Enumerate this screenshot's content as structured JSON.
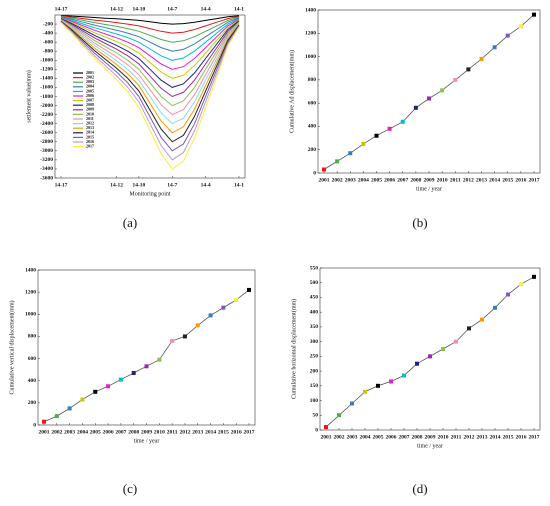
{
  "chart_data": [
    {
      "type": "line",
      "label": "(a)",
      "xlabel": "Monitoring  point",
      "ylabel": "settlement value(mm)",
      "categories": [
        "14-17",
        null,
        null,
        null,
        null,
        "14-12",
        null,
        "14-10",
        null,
        null,
        "14-7",
        null,
        null,
        "14-4",
        null,
        null,
        "14-1"
      ],
      "ylim": [
        -3600,
        0
      ],
      "yticks": [
        -200,
        -400,
        -600,
        -800,
        -1000,
        -1200,
        -1400,
        -1600,
        -1800,
        -2000,
        -2200,
        -2400,
        -2600,
        -2800,
        -3000,
        -3200,
        -3400,
        -3600
      ],
      "legend": "left",
      "top_axis": true,
      "series": [
        {
          "name": "2001",
          "color": "#000000",
          "values": [
            -10,
            -24,
            -40,
            -56,
            -70,
            -84,
            -100,
            -120,
            -150,
            -180,
            -200,
            -190,
            -160,
            -120,
            -80,
            -40,
            -16
          ]
        },
        {
          "name": "2002",
          "color": "#e41a1c",
          "values": [
            -20,
            -48,
            -80,
            -112,
            -140,
            -168,
            -200,
            -240,
            -300,
            -360,
            -400,
            -380,
            -320,
            -240,
            -160,
            -80,
            -32
          ]
        },
        {
          "name": "2003",
          "color": "#4daf4a",
          "values": [
            -30,
            -72,
            -120,
            -168,
            -210,
            -252,
            -300,
            -360,
            -450,
            -540,
            -600,
            -570,
            -480,
            -360,
            -240,
            -120,
            -48
          ]
        },
        {
          "name": "2004",
          "color": "#377eb8",
          "values": [
            -40,
            -96,
            -160,
            -224,
            -280,
            -336,
            -400,
            -480,
            -600,
            -720,
            -800,
            -760,
            -640,
            -480,
            -320,
            -160,
            -64
          ]
        },
        {
          "name": "2005",
          "color": "#00bcd4",
          "values": [
            -50,
            -120,
            -200,
            -280,
            -350,
            -420,
            -500,
            -600,
            -750,
            -900,
            -1000,
            -950,
            -800,
            -600,
            -400,
            -200,
            -80
          ]
        },
        {
          "name": "2006",
          "color": "#e91ec8",
          "values": [
            -60,
            -144,
            -240,
            -336,
            -420,
            -504,
            -600,
            -720,
            -900,
            -1080,
            -1200,
            -1140,
            -960,
            -720,
            -480,
            -240,
            -96
          ]
        },
        {
          "name": "2007",
          "color": "#c8c800",
          "values": [
            -70,
            -168,
            -280,
            -392,
            -490,
            -588,
            -700,
            -840,
            -1050,
            -1260,
            -1400,
            -1330,
            -1120,
            -840,
            -560,
            -280,
            -112
          ]
        },
        {
          "name": "2008",
          "color": "#1a237e",
          "values": [
            -80,
            -192,
            -320,
            -448,
            -560,
            -672,
            -800,
            -960,
            -1200,
            -1440,
            -1600,
            -1520,
            -1280,
            -960,
            -640,
            -320,
            -128
          ]
        },
        {
          "name": "2009",
          "color": "#9c27b0",
          "values": [
            -90,
            -216,
            -360,
            -504,
            -630,
            -756,
            -900,
            -1080,
            -1350,
            -1620,
            -1800,
            -1710,
            -1440,
            -1080,
            -720,
            -360,
            -144
          ]
        },
        {
          "name": "2010",
          "color": "#8bc34a",
          "values": [
            -100,
            -240,
            -400,
            -560,
            -700,
            -840,
            -1000,
            -1200,
            -1500,
            -1800,
            -2000,
            -1900,
            -1600,
            -1200,
            -800,
            -400,
            -160
          ]
        },
        {
          "name": "2011",
          "color": "#f48fb1",
          "values": [
            -110,
            -264,
            -440,
            -616,
            -770,
            -924,
            -1100,
            -1320,
            -1650,
            -1980,
            -2200,
            -2090,
            -1760,
            -1320,
            -880,
            -440,
            -176
          ]
        },
        {
          "name": "2012",
          "color": "#80deea",
          "values": [
            -120,
            -288,
            -480,
            -672,
            -840,
            -1008,
            -1200,
            -1440,
            -1800,
            -2160,
            -2400,
            -2280,
            -1920,
            -1440,
            -960,
            -480,
            -192
          ]
        },
        {
          "name": "2013",
          "color": "#ff9800",
          "values": [
            -130,
            -312,
            -520,
            -728,
            -910,
            -1092,
            -1300,
            -1560,
            -1950,
            -2340,
            -2600,
            -2470,
            -2080,
            -1560,
            -1040,
            -520,
            -208
          ]
        },
        {
          "name": "2014",
          "color": "#212121",
          "values": [
            -140,
            -336,
            -560,
            -784,
            -980,
            -1176,
            -1400,
            -1680,
            -2100,
            -2520,
            -2800,
            -2660,
            -2240,
            -1680,
            -1120,
            -560,
            -224
          ]
        },
        {
          "name": "2015",
          "color": "#7e57c2",
          "values": [
            -150,
            -360,
            -600,
            -840,
            -1050,
            -1260,
            -1500,
            -1800,
            -2250,
            -2700,
            -3000,
            -2850,
            -2400,
            -1800,
            -1200,
            -600,
            -240
          ]
        },
        {
          "name": "2016",
          "color": "#b39ddb",
          "values": [
            -160,
            -384,
            -640,
            -896,
            -1120,
            -1344,
            -1600,
            -1920,
            -2400,
            -2880,
            -3200,
            -3040,
            -2560,
            -1920,
            -1280,
            -640,
            -256
          ]
        },
        {
          "name": "2017",
          "color": "#ffeb3b",
          "values": [
            -170,
            -408,
            -680,
            -952,
            -1190,
            -1428,
            -1700,
            -2040,
            -2550,
            -3060,
            -3400,
            -3230,
            -2720,
            -2040,
            -1360,
            -680,
            -272
          ]
        }
      ]
    },
    {
      "type": "line",
      "label": "(b)",
      "xlabel": "time / year",
      "ylabel": "Cumulative Ad displacement(mm)",
      "categories": [
        "2001",
        "2002",
        "2003",
        "2004",
        "2005",
        "2006",
        "2007",
        "2008",
        "2009",
        "2010",
        "2011",
        "2012",
        "2013",
        "2014",
        "2015",
        "2016",
        "2017"
      ],
      "ylim": [
        0,
        1400
      ],
      "yticks": [
        0,
        200,
        400,
        600,
        800,
        1000,
        1200,
        1400
      ],
      "marker_colors": [
        "#e41a1c",
        "#4daf4a",
        "#377eb8",
        "#c8c800",
        "#000000",
        "#e91ec8",
        "#00bcd4",
        "#1a237e",
        "#9c27b0",
        "#8bc34a",
        "#f48fb1",
        "#212121",
        "#ff9800",
        "#377eb8",
        "#7e57c2",
        "#ffeb3b",
        "#000000"
      ],
      "series": [
        {
          "name": null,
          "color": "#555555",
          "values": [
            30,
            100,
            170,
            250,
            320,
            380,
            440,
            560,
            640,
            710,
            800,
            890,
            980,
            1080,
            1180,
            1260,
            1360
          ]
        }
      ]
    },
    {
      "type": "line",
      "label": "(c)",
      "xlabel": "time / year",
      "ylabel": "Cumulative vertical displacement(mm)",
      "categories": [
        "2001",
        "2002",
        "2003",
        "2004",
        "2005",
        "2006",
        "2007",
        "2008",
        "2009",
        "2010",
        "2011",
        "2012",
        "2013",
        "2014",
        "2015",
        "2016",
        "2017"
      ],
      "ylim": [
        0,
        1400
      ],
      "yticks": [
        0,
        200,
        400,
        600,
        800,
        1000,
        1200,
        1400
      ],
      "marker_colors": [
        "#e41a1c",
        "#4daf4a",
        "#377eb8",
        "#c8c800",
        "#000000",
        "#e91ec8",
        "#00bcd4",
        "#1a237e",
        "#9c27b0",
        "#8bc34a",
        "#f48fb1",
        "#212121",
        "#ff9800",
        "#377eb8",
        "#7e57c2",
        "#ffeb3b",
        "#000000"
      ],
      "series": [
        {
          "name": null,
          "color": "#555555",
          "values": [
            30,
            80,
            150,
            230,
            300,
            350,
            410,
            470,
            530,
            590,
            760,
            800,
            900,
            990,
            1060,
            1130,
            1220
          ]
        }
      ]
    },
    {
      "type": "line",
      "label": "(d)",
      "xlabel": "time / year",
      "ylabel": "Cumulative horizontal displacement(mm)",
      "categories": [
        "2001",
        "2002",
        "2003",
        "2004",
        "2005",
        "2006",
        "2007",
        "2008",
        "2009",
        "2010",
        "2011",
        "2012",
        "2013",
        "2014",
        "2015",
        "2016",
        "2017"
      ],
      "ylim": [
        0,
        550
      ],
      "yticks": [
        0,
        50,
        100,
        150,
        200,
        250,
        300,
        350,
        400,
        450,
        500,
        550
      ],
      "marker_colors": [
        "#e41a1c",
        "#4daf4a",
        "#377eb8",
        "#c8c800",
        "#000000",
        "#e91ec8",
        "#00bcd4",
        "#1a237e",
        "#9c27b0",
        "#8bc34a",
        "#f48fb1",
        "#212121",
        "#ff9800",
        "#377eb8",
        "#7e57c2",
        "#ffeb3b",
        "#000000"
      ],
      "series": [
        {
          "name": null,
          "color": "#555555",
          "values": [
            10,
            50,
            90,
            130,
            150,
            165,
            185,
            225,
            250,
            275,
            300,
            345,
            375,
            415,
            460,
            495,
            520
          ]
        }
      ]
    }
  ]
}
